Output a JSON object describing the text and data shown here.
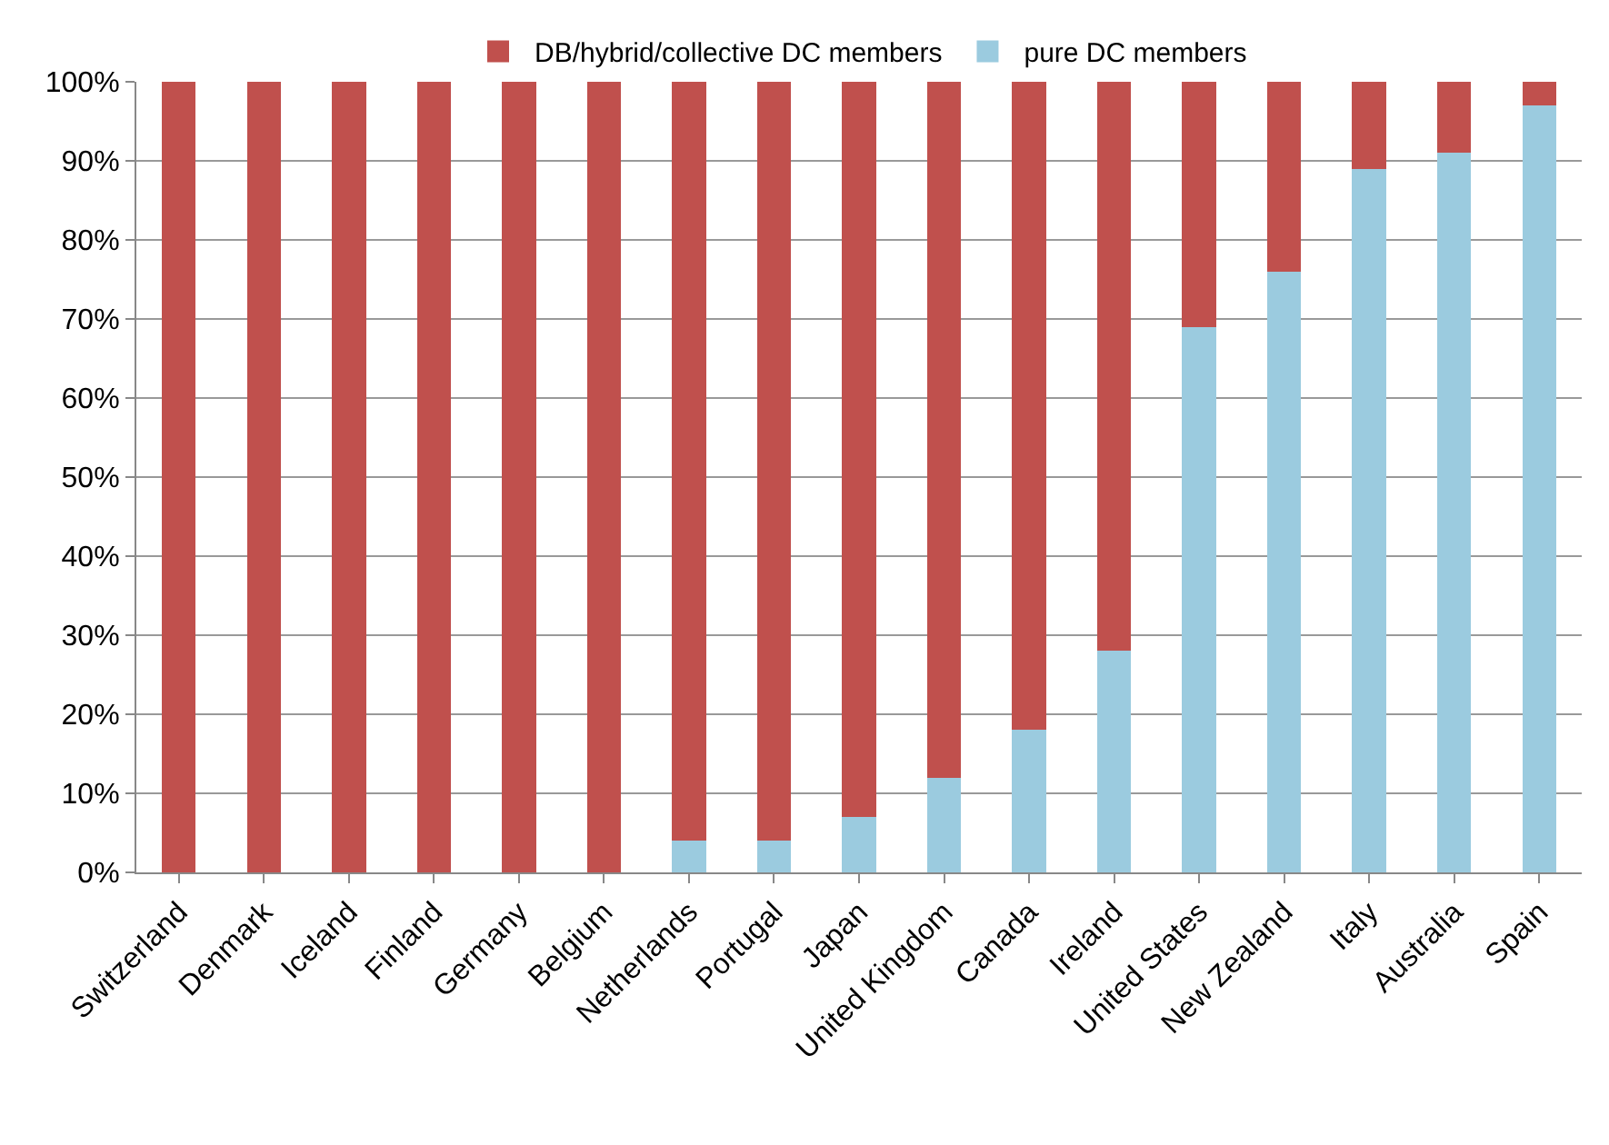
{
  "chart_data": {
    "type": "bar",
    "stacked": true,
    "categories": [
      "Switzerland",
      "Denmark",
      "Iceland",
      "Finland",
      "Germany",
      "Belgium",
      "Netherlands",
      "Portugal",
      "Japan",
      "United Kingdom",
      "Canada",
      "Ireland",
      "United States",
      "New Zealand",
      "Italy",
      "Australia",
      "Spain"
    ],
    "series": [
      {
        "name": "pure DC members",
        "color": "#9bcbdf",
        "values": [
          0,
          0,
          0,
          0,
          0,
          0,
          4,
          4,
          7,
          12,
          18,
          28,
          69,
          76,
          89,
          91,
          97
        ]
      },
      {
        "name": "DB/hybrid/collective DC members",
        "color": "#c0504d",
        "values": [
          100,
          100,
          100,
          100,
          100,
          100,
          96,
          96,
          93,
          88,
          82,
          72,
          31,
          24,
          11,
          9,
          3
        ]
      }
    ],
    "ylim": [
      0,
      100
    ],
    "yticks": [
      {
        "value": 0,
        "label": "0%"
      },
      {
        "value": 10,
        "label": "10%"
      },
      {
        "value": 20,
        "label": "20%"
      },
      {
        "value": 30,
        "label": "30%"
      },
      {
        "value": 40,
        "label": "40%"
      },
      {
        "value": 50,
        "label": "50%"
      },
      {
        "value": 60,
        "label": "60%"
      },
      {
        "value": 70,
        "label": "70%"
      },
      {
        "value": 80,
        "label": "80%"
      },
      {
        "value": 90,
        "label": "90%"
      },
      {
        "value": 100,
        "label": "100%"
      }
    ],
    "grid": "y",
    "legend": "top"
  }
}
